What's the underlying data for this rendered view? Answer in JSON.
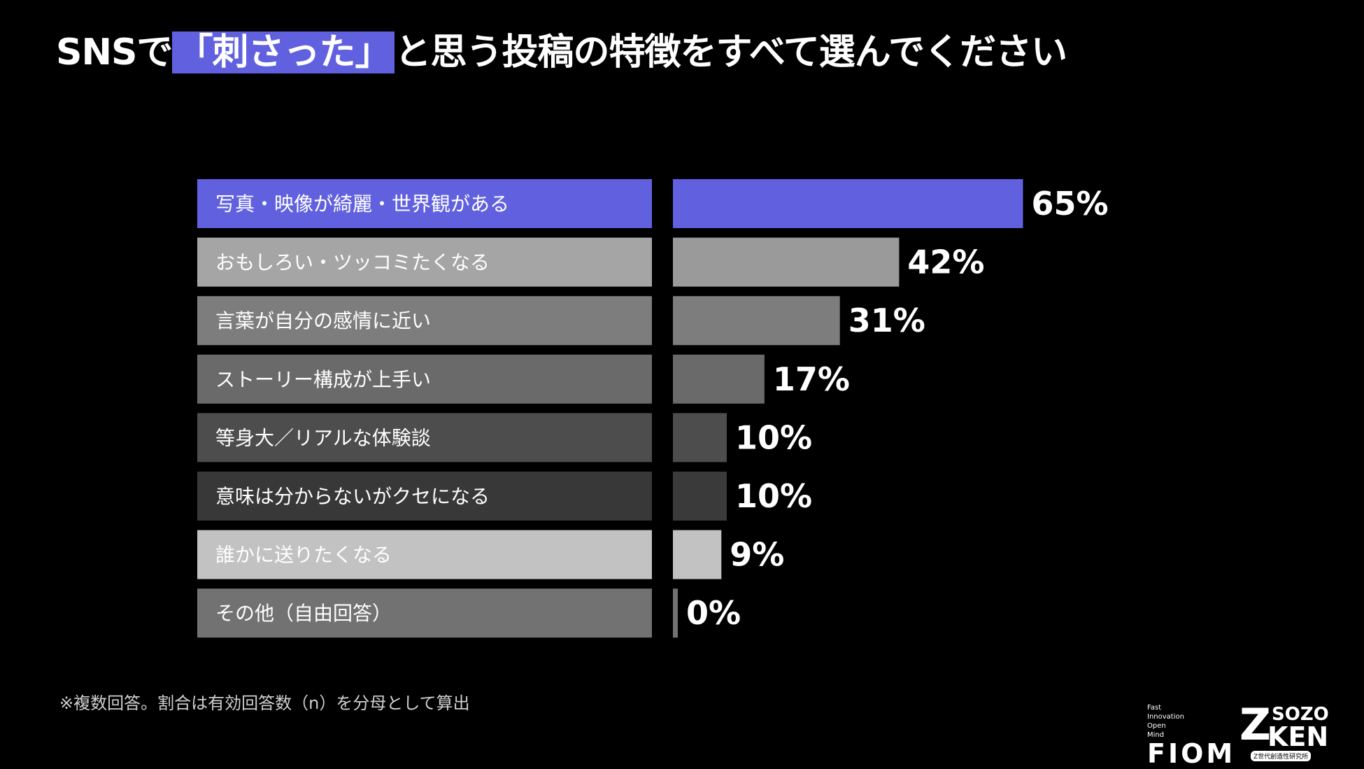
{
  "title": {
    "prefix": "SNSで",
    "highlight": "「刺さった」",
    "suffix": "と思う投稿の特徴をすべて選んでください"
  },
  "chart_data": {
    "type": "bar",
    "orientation": "horizontal",
    "categories": [
      "写真・映像が綺麗・世界観がある",
      "おもしろい・ツッコミたくなる",
      "言葉が自分の感情に近い",
      "ストーリー構成が上手い",
      "等身大／リアルな体験談",
      "意味は分からないがクセになる",
      "誰かに送りたくなる",
      "その他（自由回答）"
    ],
    "values": [
      65,
      42,
      31,
      17,
      10,
      10,
      9,
      0
    ],
    "value_labels": [
      "65%",
      "42%",
      "31%",
      "17%",
      "10%",
      "10%",
      "9%",
      "0%"
    ],
    "colors": [
      "#6161e0",
      "#9a9a9a",
      "#7d7d7d",
      "#6a6a6a",
      "#4d4d4d",
      "#3a3a3a",
      "#c2c2c2",
      "#727272"
    ],
    "label_colors": [
      "#6161e0",
      "#a5a5a5",
      "#7d7d7d",
      "#6a6a6a",
      "#4d4d4d",
      "#383838",
      "#c2c2c2",
      "#727272"
    ],
    "xlim": [
      0,
      100
    ],
    "grid": false,
    "legend": "none"
  },
  "footnote": "※複数回答。割合は有効回答数（n）を分母として算出",
  "logos": {
    "fiom_small": [
      "Fast",
      "Innovation",
      "Open",
      "Mind"
    ],
    "fiom": "FIOM",
    "sozo_z": "Z",
    "sozo_top": "SOZO",
    "sozo_bottom": "KEN",
    "sozo_caption": "Z世代創造性研究所"
  }
}
